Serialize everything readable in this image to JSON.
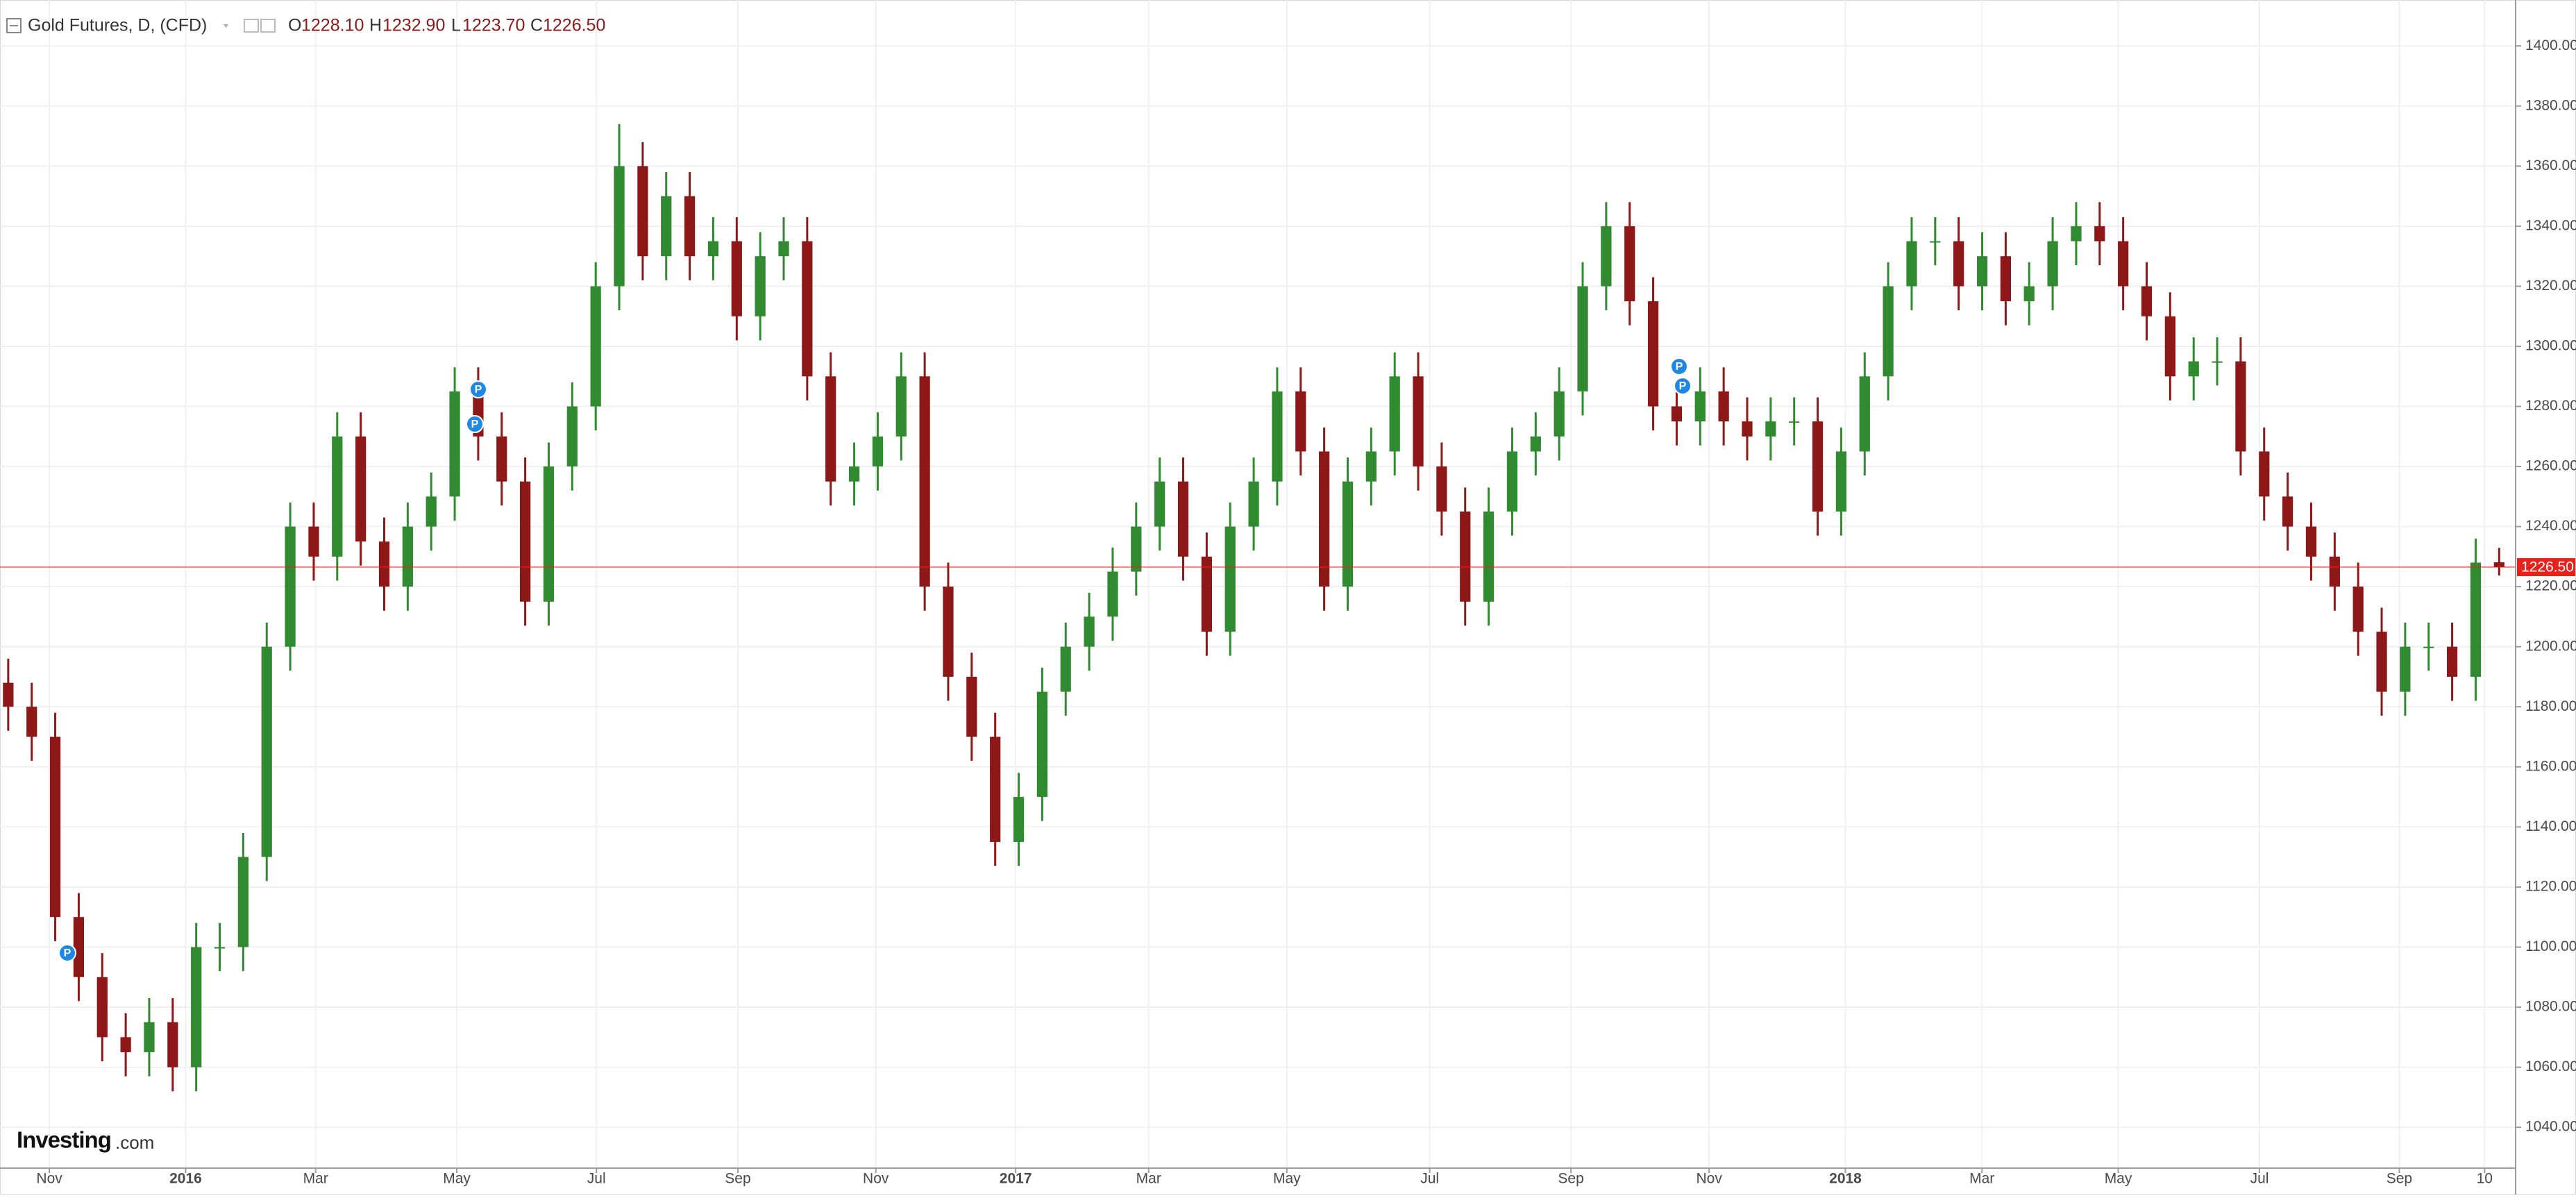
{
  "chart_data": {
    "type": "candlestick",
    "header": {
      "symbol": "Gold Futures, D, (CFD)",
      "o_letter": "O",
      "open": "1228.10",
      "h_letter": "H",
      "high": "1232.90",
      "l_letter": "L",
      "low": "1223.70",
      "c_letter": "C",
      "close": "1226.50"
    },
    "event_marker_label": "P",
    "watermark": {
      "brand": "Investing",
      "suffix": ".com"
    },
    "up_color": "#2f8a30",
    "down_color": "#8e1717",
    "last_price_color": "#e8211b",
    "grid": true,
    "xlim": [
      -0.35,
      106.7
    ],
    "xticks": [
      {
        "value": 1.75,
        "label": "Nov"
      },
      {
        "value": 7.55,
        "label": "2016"
      },
      {
        "value": 13.08,
        "label": "Mar"
      },
      {
        "value": 19.09,
        "label": "May"
      },
      {
        "value": 25.03,
        "label": "Jul"
      },
      {
        "value": 31.05,
        "label": "Sep"
      },
      {
        "value": 36.92,
        "label": "Nov"
      },
      {
        "value": 42.87,
        "label": "2017"
      },
      {
        "value": 48.53,
        "label": "Mar"
      },
      {
        "value": 54.41,
        "label": "May"
      },
      {
        "value": 60.49,
        "label": "Jul"
      },
      {
        "value": 66.5,
        "label": "Sep"
      },
      {
        "value": 72.38,
        "label": "Nov"
      },
      {
        "value": 78.18,
        "label": "2018"
      },
      {
        "value": 83.99,
        "label": "Mar"
      },
      {
        "value": 89.79,
        "label": "May"
      },
      {
        "value": 95.8,
        "label": "Jul"
      },
      {
        "value": 101.75,
        "label": "Sep"
      },
      {
        "value": 105.38,
        "label": "10"
      }
    ],
    "ylim": [
      1026.4,
      1415.3
    ],
    "yticks": [
      {
        "value": 1040,
        "label": "1040.00"
      },
      {
        "value": 1060,
        "label": "1060.00"
      },
      {
        "value": 1080,
        "label": "1080.00"
      },
      {
        "value": 1100,
        "label": "1100.00"
      },
      {
        "value": 1120,
        "label": "1120.00"
      },
      {
        "value": 1140,
        "label": "1140.00"
      },
      {
        "value": 1160,
        "label": "1160.00"
      },
      {
        "value": 1180,
        "label": "1180.00"
      },
      {
        "value": 1200,
        "label": "1200.00"
      },
      {
        "value": 1220,
        "label": "1220.00"
      },
      {
        "value": 1240,
        "label": "1240.00"
      },
      {
        "value": 1260,
        "label": "1260.00"
      },
      {
        "value": 1280,
        "label": "1280.00"
      },
      {
        "value": 1300,
        "label": "1300.00"
      },
      {
        "value": 1320,
        "label": "1320.00"
      },
      {
        "value": 1340,
        "label": "1340.00"
      },
      {
        "value": 1360,
        "label": "1360.00"
      },
      {
        "value": 1380,
        "label": "1380.00"
      },
      {
        "value": 1400,
        "label": "1400.00"
      }
    ],
    "series": [
      {
        "open": [
          1188,
          1180,
          1170,
          1110,
          1090,
          1070,
          1065,
          1075,
          1060,
          1100,
          1100,
          1130,
          1200,
          1240,
          1230,
          1270,
          1235,
          1220,
          1240,
          1250,
          1285,
          1270,
          1255,
          1215,
          1260,
          1280,
          1320,
          1360,
          1330,
          1350,
          1330,
          1335,
          1310,
          1330,
          1335,
          1290,
          1255,
          1260,
          1270,
          1290,
          1220,
          1190,
          1170,
          1135,
          1150,
          1185,
          1200,
          1210,
          1225,
          1240,
          1255,
          1230,
          1205,
          1240,
          1255,
          1285,
          1265,
          1220,
          1255,
          1265,
          1290,
          1260,
          1245,
          1215,
          1245,
          1265,
          1270,
          1285,
          1320,
          1340,
          1315,
          1280,
          1275,
          1285,
          1275,
          1270,
          1275,
          1275,
          1245,
          1265,
          1290,
          1320,
          1335,
          1335,
          1320,
          1330,
          1315,
          1320,
          1335,
          1340,
          1335,
          1320,
          1310,
          1290,
          1295,
          1295,
          1265,
          1250,
          1240,
          1230,
          1220,
          1205,
          1185,
          1200,
          1200,
          1190,
          1228.1
        ],
        "high": [
          1196,
          1188,
          1178,
          1118,
          1098,
          1078,
          1083,
          1083,
          1108,
          1108,
          1138,
          1208,
          1248,
          1248,
          1278,
          1278,
          1243,
          1248,
          1258,
          1293,
          1293,
          1278,
          1263,
          1268,
          1288,
          1328,
          1374,
          1368,
          1358,
          1358,
          1343,
          1343,
          1338,
          1343,
          1343,
          1298,
          1268,
          1278,
          1298,
          1298,
          1228,
          1198,
          1178,
          1158,
          1193,
          1208,
          1218,
          1233,
          1248,
          1263,
          1263,
          1238,
          1248,
          1263,
          1293,
          1293,
          1273,
          1263,
          1273,
          1298,
          1298,
          1268,
          1253,
          1253,
          1273,
          1278,
          1293,
          1328,
          1348,
          1348,
          1323,
          1288,
          1293,
          1293,
          1283,
          1283,
          1283,
          1283,
          1273,
          1298,
          1328,
          1343,
          1343,
          1343,
          1338,
          1338,
          1328,
          1343,
          1348,
          1348,
          1343,
          1328,
          1318,
          1303,
          1303,
          1303,
          1273,
          1258,
          1248,
          1238,
          1228,
          1213,
          1208,
          1208,
          1208,
          1236,
          1232.9
        ],
        "low": [
          1172,
          1162,
          1102,
          1082,
          1062,
          1057,
          1057,
          1052,
          1052,
          1092,
          1092,
          1122,
          1192,
          1222,
          1222,
          1227,
          1212,
          1212,
          1232,
          1242,
          1262,
          1247,
          1207,
          1207,
          1252,
          1272,
          1312,
          1322,
          1322,
          1322,
          1322,
          1302,
          1302,
          1322,
          1282,
          1247,
          1247,
          1252,
          1262,
          1212,
          1182,
          1162,
          1127,
          1127,
          1142,
          1177,
          1192,
          1202,
          1217,
          1232,
          1222,
          1197,
          1197,
          1232,
          1247,
          1257,
          1212,
          1212,
          1247,
          1257,
          1252,
          1237,
          1207,
          1207,
          1237,
          1257,
          1262,
          1277,
          1312,
          1307,
          1272,
          1267,
          1267,
          1267,
          1262,
          1262,
          1267,
          1237,
          1237,
          1257,
          1282,
          1312,
          1327,
          1312,
          1312,
          1307,
          1307,
          1312,
          1327,
          1327,
          1312,
          1302,
          1282,
          1282,
          1287,
          1257,
          1242,
          1232,
          1222,
          1212,
          1197,
          1177,
          1177,
          1192,
          1182,
          1182,
          1223.7
        ],
        "close": [
          1180,
          1170,
          1110,
          1090,
          1070,
          1065,
          1075,
          1060,
          1100,
          1100,
          1130,
          1200,
          1240,
          1230,
          1270,
          1235,
          1220,
          1240,
          1250,
          1285,
          1270,
          1255,
          1215,
          1260,
          1280,
          1320,
          1360,
          1330,
          1350,
          1330,
          1335,
          1310,
          1330,
          1335,
          1290,
          1255,
          1260,
          1270,
          1290,
          1220,
          1190,
          1170,
          1135,
          1150,
          1185,
          1200,
          1210,
          1225,
          1240,
          1255,
          1230,
          1205,
          1240,
          1255,
          1285,
          1265,
          1220,
          1255,
          1265,
          1290,
          1260,
          1245,
          1215,
          1245,
          1265,
          1270,
          1285,
          1320,
          1340,
          1315,
          1280,
          1275,
          1285,
          1275,
          1270,
          1275,
          1275,
          1245,
          1265,
          1290,
          1320,
          1335,
          1335,
          1320,
          1330,
          1315,
          1320,
          1335,
          1340,
          1335,
          1320,
          1310,
          1290,
          1295,
          1295,
          1265,
          1250,
          1240,
          1230,
          1220,
          1205,
          1185,
          1200,
          1200,
          1190,
          1228,
          1226.5
        ]
      }
    ]
  }
}
